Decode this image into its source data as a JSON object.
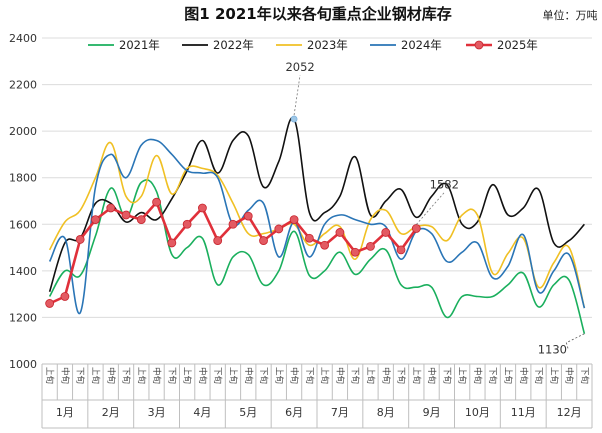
{
  "chart_data": {
    "type": "line",
    "title": "图1 2021年以来各旬重点企业钢材库存",
    "unit_label": "单位：万吨",
    "ylim": [
      1000,
      2400
    ],
    "yticks": [
      1000,
      1200,
      1400,
      1600,
      1800,
      2000,
      2200,
      2400
    ],
    "grid": "horizontal",
    "legend_position": "top",
    "x_day_labels": [
      "上旬",
      "中旬",
      "下旬"
    ],
    "months": [
      "1月",
      "2月",
      "3月",
      "4月",
      "5月",
      "6月",
      "7月",
      "8月",
      "9月",
      "10月",
      "11月",
      "12月"
    ],
    "series": [
      {
        "name": "2021年",
        "color": "#1aaf5d",
        "width": 1.6,
        "markers": false,
        "values": [
          1290,
          1400,
          1380,
          1550,
          1755,
          1630,
          1780,
          1740,
          1470,
          1500,
          1540,
          1340,
          1460,
          1470,
          1340,
          1400,
          1570,
          1380,
          1400,
          1480,
          1385,
          1450,
          1490,
          1340,
          1330,
          1330,
          1200,
          1290,
          1290,
          1290,
          1340,
          1390,
          1245,
          1340,
          1360,
          1130
        ]
      },
      {
        "name": "2022年",
        "color": "#111111",
        "width": 1.6,
        "markers": false,
        "values": [
          1310,
          1520,
          1540,
          1690,
          1690,
          1610,
          1650,
          1620,
          1710,
          1830,
          1960,
          1820,
          1960,
          1980,
          1760,
          1870,
          2052,
          1650,
          1650,
          1720,
          1890,
          1640,
          1700,
          1750,
          1630,
          1720,
          1770,
          1600,
          1610,
          1770,
          1640,
          1670,
          1750,
          1520,
          1530,
          1600
        ]
      },
      {
        "name": "2023年",
        "color": "#f0c024",
        "width": 1.6,
        "markers": false,
        "values": [
          1490,
          1610,
          1660,
          1800,
          1950,
          1720,
          1720,
          1895,
          1730,
          1840,
          1840,
          1810,
          1690,
          1560,
          1560,
          1580,
          1600,
          1510,
          1560,
          1590,
          1450,
          1620,
          1660,
          1560,
          1590,
          1590,
          1530,
          1640,
          1640,
          1390,
          1475,
          1540,
          1330,
          1435,
          1500,
          1240
        ]
      },
      {
        "name": "2024年",
        "color": "#2a75b6",
        "width": 1.6,
        "markers": false,
        "values": [
          1440,
          1540,
          1220,
          1760,
          1900,
          1800,
          1940,
          1960,
          1900,
          1830,
          1820,
          1800,
          1600,
          1660,
          1690,
          1460,
          1610,
          1460,
          1600,
          1640,
          1620,
          1600,
          1590,
          1450,
          1570,
          1560,
          1440,
          1480,
          1520,
          1370,
          1420,
          1555,
          1310,
          1400,
          1470,
          1240
        ]
      },
      {
        "name": "2025年",
        "color": "#e0303a",
        "width": 2.6,
        "markers": true,
        "marker_color": "#e35a62",
        "values": [
          1260,
          1290,
          1535,
          1620,
          1670,
          1640,
          1620,
          1695,
          1520,
          1600,
          1670,
          1530,
          1600,
          1635,
          1530,
          1580,
          1620,
          1540,
          1510,
          1565,
          1480,
          1505,
          1565,
          1490,
          1582
        ]
      }
    ],
    "annotations": [
      {
        "text": "2052",
        "series": "2022年",
        "index": 16,
        "marker_color": "#9ec8e8"
      },
      {
        "text": "1582",
        "series": "2025年",
        "index": 24
      },
      {
        "text": "1130",
        "series": "2021年",
        "index": 35
      }
    ]
  }
}
